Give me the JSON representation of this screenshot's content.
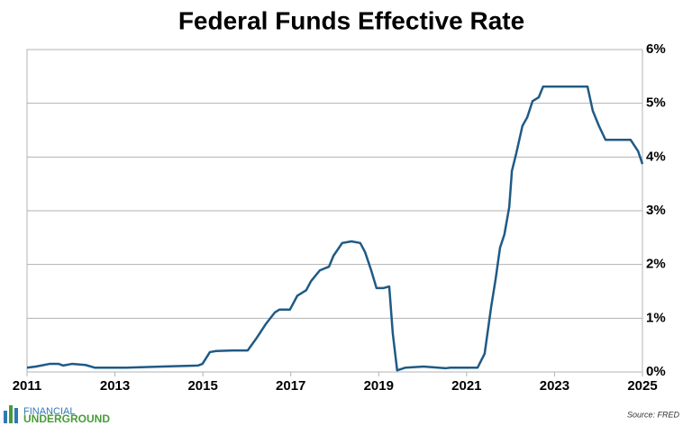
{
  "chart_data": {
    "type": "line",
    "title": "Federal Funds Effective Rate",
    "x": [
      2011.0,
      2011.2,
      2011.51,
      2011.72,
      2011.82,
      2012.02,
      2012.33,
      2012.54,
      2013.25,
      2014.07,
      2014.89,
      2014.99,
      2015.16,
      2015.3,
      2015.71,
      2016.02,
      2016.23,
      2016.43,
      2016.64,
      2016.74,
      2016.98,
      2017.15,
      2017.35,
      2017.46,
      2017.66,
      2017.87,
      2017.97,
      2018.17,
      2018.38,
      2018.58,
      2018.69,
      2018.83,
      2018.95,
      2019.1,
      2019.24,
      2019.32,
      2019.42,
      2019.61,
      2020.02,
      2020.53,
      2020.63,
      2021.25,
      2021.41,
      2021.56,
      2021.66,
      2021.76,
      2021.86,
      2021.97,
      2022.03,
      2022.13,
      2022.27,
      2022.38,
      2022.5,
      2022.64,
      2022.74,
      2023.75,
      2023.87,
      2024.01,
      2024.16,
      2024.73,
      2024.9,
      2025.0
    ],
    "series": [
      {
        "name": "Federal Funds Effective Rate",
        "color": "#1f5a86",
        "values": [
          0.08,
          0.1,
          0.15,
          0.15,
          0.12,
          0.15,
          0.13,
          0.08,
          0.08,
          0.1,
          0.12,
          0.15,
          0.37,
          0.39,
          0.4,
          0.4,
          0.64,
          0.89,
          1.11,
          1.16,
          1.16,
          1.42,
          1.52,
          1.69,
          1.89,
          1.96,
          2.16,
          2.4,
          2.43,
          2.4,
          2.23,
          1.89,
          1.56,
          1.56,
          1.59,
          0.72,
          0.03,
          0.08,
          0.1,
          0.07,
          0.08,
          0.08,
          0.34,
          1.22,
          1.73,
          2.31,
          2.56,
          3.07,
          3.74,
          4.07,
          4.58,
          4.74,
          5.04,
          5.11,
          5.31,
          5.31,
          4.86,
          4.58,
          4.32,
          4.32,
          4.11,
          3.87
        ]
      }
    ],
    "xlim": [
      2011,
      2025
    ],
    "xticks": [
      2011,
      2013,
      2015,
      2017,
      2019,
      2021,
      2023,
      2025
    ],
    "ylim": [
      0,
      6
    ],
    "yticks": [
      {
        "value": 0,
        "label": "0%"
      },
      {
        "value": 1,
        "label": "1%"
      },
      {
        "value": 2,
        "label": "2%"
      },
      {
        "value": 3,
        "label": "3%"
      },
      {
        "value": 4,
        "label": "4%"
      },
      {
        "value": 5,
        "label": "5%"
      },
      {
        "value": 6,
        "label": "6%"
      }
    ],
    "y_axis_side": "right",
    "grid": true,
    "logo": {
      "top": "FINANCIAL",
      "bottom": "UNDERGROUND"
    },
    "source": "Source: FRED"
  }
}
